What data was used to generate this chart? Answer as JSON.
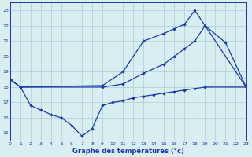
{
  "background_color": "#d8eef0",
  "grid_color": "#aacdd4",
  "line_color": "#1a3aaa",
  "title": "Graphe des températures (°c)",
  "x_max": [
    0,
    1,
    9,
    11,
    13,
    15,
    16,
    17,
    18,
    19,
    23
  ],
  "y_max": [
    18.5,
    18.0,
    18.1,
    19.0,
    21.0,
    21.5,
    21.8,
    22.1,
    23.0,
    22.0,
    18.0
  ],
  "x_mean": [
    0,
    1,
    9,
    11,
    13,
    15,
    16,
    17,
    18,
    19,
    21,
    23
  ],
  "y_mean": [
    18.5,
    18.0,
    18.0,
    18.2,
    18.9,
    19.5,
    20.0,
    20.5,
    21.0,
    22.0,
    20.9,
    18.0
  ],
  "x_min": [
    0,
    1,
    2,
    3,
    4,
    5,
    6,
    7,
    8,
    9,
    10,
    11,
    12,
    13,
    14,
    15,
    16,
    17,
    18,
    19,
    23
  ],
  "y_min": [
    18.5,
    18.0,
    16.8,
    16.5,
    16.2,
    16.0,
    15.5,
    14.8,
    15.3,
    16.8,
    17.0,
    17.1,
    17.3,
    17.4,
    17.5,
    17.6,
    17.7,
    17.8,
    17.9,
    18.0,
    18.0
  ],
  "xlim": [
    0,
    23
  ],
  "ylim": [
    14.5,
    23.5
  ],
  "yticks": [
    15,
    16,
    17,
    18,
    19,
    20,
    21,
    22,
    23
  ],
  "xticks": [
    0,
    1,
    2,
    3,
    4,
    5,
    6,
    7,
    8,
    9,
    10,
    11,
    12,
    13,
    14,
    15,
    16,
    17,
    18,
    19,
    20,
    21,
    22,
    23
  ]
}
